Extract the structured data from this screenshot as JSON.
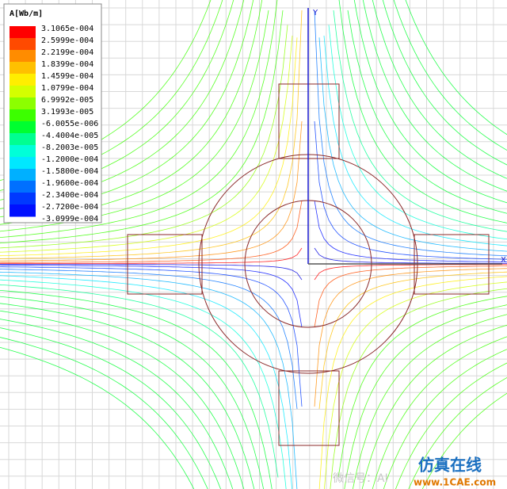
{
  "legend": {
    "title": "A[Wb/m]",
    "entries": [
      {
        "label": "3.1065e-004",
        "color": "#ff0000"
      },
      {
        "label": "2.5999e-004",
        "color": "#ff4a00"
      },
      {
        "label": "2.2199e-004",
        "color": "#ff8c00"
      },
      {
        "label": "1.8399e-004",
        "color": "#ffc000"
      },
      {
        "label": "1.4599e-004",
        "color": "#ffee00"
      },
      {
        "label": "1.0799e-004",
        "color": "#d4ff00"
      },
      {
        "label": "6.9992e-005",
        "color": "#8cff00"
      },
      {
        "label": "3.1993e-005",
        "color": "#3cff00"
      },
      {
        "label": "-6.0055e-006",
        "color": "#00ff30"
      },
      {
        "label": "-4.4004e-005",
        "color": "#00ff90"
      },
      {
        "label": "-8.2003e-005",
        "color": "#00ffd8"
      },
      {
        "label": "-1.2000e-004",
        "color": "#00e8ff"
      },
      {
        "label": "-1.5800e-004",
        "color": "#00b0ff"
      },
      {
        "label": "-1.9600e-004",
        "color": "#0070ff"
      },
      {
        "label": "-2.3400e-004",
        "color": "#0038ff"
      },
      {
        "label": "-2.7200e-004",
        "color": "#0010ff"
      },
      {
        "label": "-3.0999e-004",
        "color": "#0000e0"
      }
    ]
  },
  "axes": {
    "y": "Y",
    "x": "X"
  },
  "watermark": {
    "brand": "仿真在线",
    "url": "www.1CAE.com",
    "wechat": "微信号：AI"
  }
}
